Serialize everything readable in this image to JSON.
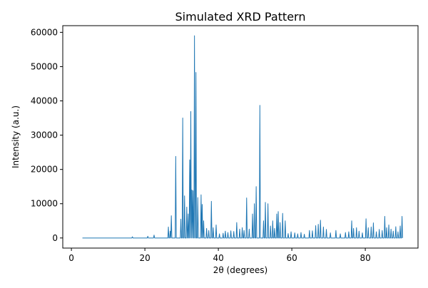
{
  "chart_data": {
    "type": "line",
    "title": "Simulated XRD Pattern",
    "xlabel": "2θ (degrees)",
    "ylabel": "Intensity (a.u.)",
    "xlim": [
      -2.35,
      94.35
    ],
    "ylim": [
      -2950,
      61950
    ],
    "xticks": [
      0,
      20,
      40,
      60,
      80
    ],
    "yticks": [
      0,
      10000,
      20000,
      30000,
      40000,
      50000,
      60000
    ],
    "grid": false,
    "legend": "none",
    "series": [
      {
        "color": "#1f77b4",
        "peaks": [
          [
            16.6,
            350
          ],
          [
            20.8,
            500
          ],
          [
            22.5,
            850
          ],
          [
            26.4,
            3200
          ],
          [
            26.9,
            2000
          ],
          [
            27.2,
            6500
          ],
          [
            28.4,
            23800
          ],
          [
            29.8,
            5500
          ],
          [
            30.3,
            35000
          ],
          [
            30.8,
            12300
          ],
          [
            31.4,
            9000
          ],
          [
            31.8,
            7000
          ],
          [
            32.2,
            22800
          ],
          [
            32.5,
            36900
          ],
          [
            32.8,
            14000
          ],
          [
            33.1,
            13800
          ],
          [
            33.5,
            59000
          ],
          [
            33.9,
            48300
          ],
          [
            34.4,
            11800
          ],
          [
            35.3,
            12600
          ],
          [
            35.6,
            9800
          ],
          [
            36.0,
            5000
          ],
          [
            36.8,
            2800
          ],
          [
            37.4,
            2200
          ],
          [
            38.1,
            10700
          ],
          [
            38.6,
            3000
          ],
          [
            39.4,
            3800
          ],
          [
            40.3,
            1200
          ],
          [
            41.3,
            1400
          ],
          [
            41.9,
            2000
          ],
          [
            42.6,
            1600
          ],
          [
            43.4,
            2100
          ],
          [
            44.2,
            1900
          ],
          [
            45.0,
            4500
          ],
          [
            45.8,
            2600
          ],
          [
            46.5,
            3000
          ],
          [
            47.0,
            2200
          ],
          [
            47.7,
            11700
          ],
          [
            48.4,
            2600
          ],
          [
            49.3,
            7000
          ],
          [
            49.8,
            10000
          ],
          [
            50.3,
            15000
          ],
          [
            51.3,
            38700
          ],
          [
            52.3,
            5000
          ],
          [
            52.8,
            10400
          ],
          [
            53.5,
            10000
          ],
          [
            54.2,
            3500
          ],
          [
            54.8,
            5000
          ],
          [
            55.3,
            2800
          ],
          [
            55.9,
            7000
          ],
          [
            56.3,
            7700
          ],
          [
            56.8,
            4500
          ],
          [
            57.5,
            7200
          ],
          [
            58.2,
            5000
          ],
          [
            59.0,
            1300
          ],
          [
            59.8,
            1800
          ],
          [
            60.8,
            1500
          ],
          [
            61.6,
            1200
          ],
          [
            62.5,
            1600
          ],
          [
            63.4,
            1100
          ],
          [
            64.8,
            2200
          ],
          [
            65.6,
            2100
          ],
          [
            66.5,
            3600
          ],
          [
            67.2,
            4000
          ],
          [
            67.8,
            5200
          ],
          [
            68.6,
            3200
          ],
          [
            69.4,
            2500
          ],
          [
            70.5,
            1500
          ],
          [
            72.0,
            2200
          ],
          [
            73.2,
            1200
          ],
          [
            74.6,
            1600
          ],
          [
            75.5,
            1800
          ],
          [
            76.3,
            5000
          ],
          [
            76.8,
            2800
          ],
          [
            77.6,
            3000
          ],
          [
            78.3,
            2000
          ],
          [
            79.2,
            1500
          ],
          [
            80.2,
            5600
          ],
          [
            80.8,
            3000
          ],
          [
            81.6,
            3200
          ],
          [
            82.2,
            4400
          ],
          [
            83.0,
            1800
          ],
          [
            83.8,
            2500
          ],
          [
            84.6,
            2200
          ],
          [
            85.3,
            6300
          ],
          [
            85.8,
            3000
          ],
          [
            86.4,
            3800
          ],
          [
            87.0,
            2600
          ],
          [
            87.6,
            2000
          ],
          [
            88.3,
            3300
          ],
          [
            88.9,
            1800
          ],
          [
            89.5,
            3500
          ],
          [
            90.0,
            6300
          ]
        ]
      }
    ]
  }
}
